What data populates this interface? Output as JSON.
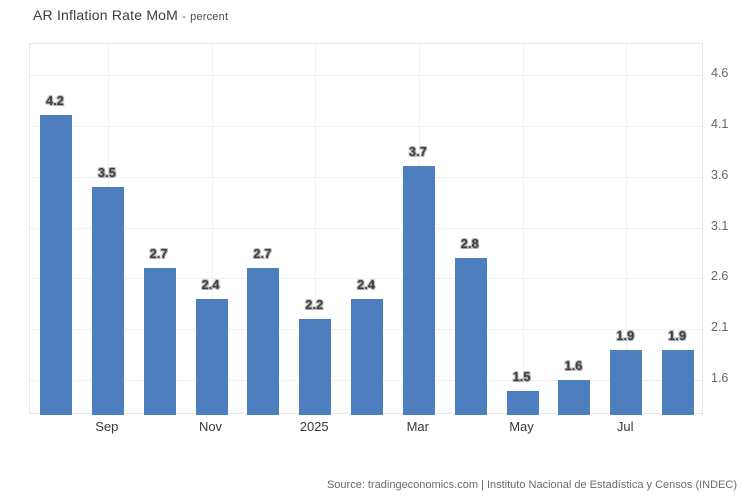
{
  "header": {
    "title": "AR Inflation Rate MoM",
    "subtitle_separator": "-",
    "subtitle": "percent"
  },
  "footer": {
    "source": "Source: tradingeconomics.com | Instituto Nacional de Estadística y Censos (INDEC)"
  },
  "colors": {
    "bar": "#4d7fbe",
    "grid_horizontal": "#f0f0f0",
    "grid_vertical": "#f2f2f2",
    "plot_border": "#e6e6e6",
    "title_text": "#3c3c3c",
    "tick_text": "#666666",
    "x_label_text": "#3a3a3a",
    "value_label_text": "#3f3f3f",
    "source_text": "#6b6b6b",
    "background": "#ffffff"
  },
  "chart_data": {
    "type": "bar",
    "title": "AR Inflation Rate MoM",
    "ylabel": "percent",
    "xlabel": "",
    "values": [
      4.2,
      3.5,
      2.7,
      2.4,
      2.7,
      2.2,
      2.4,
      3.7,
      2.8,
      1.5,
      1.6,
      1.9,
      1.9
    ],
    "value_labels": [
      "4.2",
      "3.5",
      "2.7",
      "2.4",
      "2.7",
      "2.2",
      "2.4",
      "3.7",
      "2.8",
      "1.5",
      "1.6",
      "1.9",
      "1.9"
    ],
    "xticks": [
      {
        "label": "Sep",
        "slot": 1
      },
      {
        "label": "Nov",
        "slot": 3
      },
      {
        "label": "2025",
        "slot": 5
      },
      {
        "label": "Mar",
        "slot": 7
      },
      {
        "label": "May",
        "slot": 9
      },
      {
        "label": "Jul",
        "slot": 11
      }
    ],
    "yticks": [
      "4.6",
      "4.1",
      "3.6",
      "3.1",
      "2.6",
      "2.1",
      "1.6"
    ],
    "ylim": [
      1.26,
      4.9
    ],
    "yaxis_side": "right",
    "grid": true,
    "legend": false,
    "bar_count": 13
  }
}
